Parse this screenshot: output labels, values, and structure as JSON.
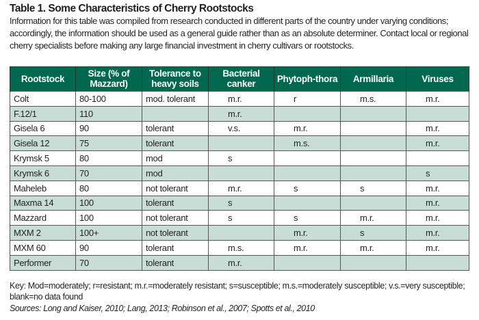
{
  "title": "Table 1. Some Characteristics of Cherry Rootstocks",
  "intro": "Information for this table was compiled from research conducted in different parts of the country under varying conditions; accordingly, the information should be used as a general guide rather than as an absolute determiner. Contact local or regional cherry specialists before making any large financial investment in cherry cultivars or rootstocks.",
  "headers": [
    "Rootstock",
    "Size (% of Mazzard)",
    "Tolerance to heavy soils",
    "Bacterial canker",
    "Phytoph-thora",
    "Armillaria",
    "Viruses"
  ],
  "rows": [
    [
      "Colt",
      "80-100",
      "mod. tolerant",
      "m.r.",
      "r",
      "m.s.",
      "m.r."
    ],
    [
      "F.12/1",
      "110",
      "",
      "m.r.",
      "",
      "",
      ""
    ],
    [
      "Gisela 6",
      "90",
      "tolerant",
      "v.s.",
      "m.r.",
      "",
      "m.r."
    ],
    [
      "Gisela 12",
      "75",
      "tolerant",
      "",
      "m.s.",
      "",
      "m.r."
    ],
    [
      "Krymsk 5",
      "80",
      "mod",
      "s",
      "",
      "",
      ""
    ],
    [
      "Krymsk 6",
      "70",
      "mod",
      "",
      "",
      "",
      "s"
    ],
    [
      "Maheleb",
      "80",
      "not tolerant",
      "m.r.",
      "s",
      "s",
      "m.r."
    ],
    [
      "Maxma 14",
      "100",
      "tolerant",
      "s",
      "",
      "",
      "m.r."
    ],
    [
      "Mazzard",
      "100",
      "not tolerant",
      "s",
      "s",
      "m.r.",
      "m.r."
    ],
    [
      "MXM 2",
      "100+",
      "not tolerant",
      "",
      "m.r.",
      "s",
      "m.r."
    ],
    [
      "MXM 60",
      "90",
      "tolerant",
      "m.s.",
      "m.r.",
      "m.r.",
      "m.r."
    ],
    [
      "Performer",
      "70",
      "tolerant",
      "m.r.",
      "",
      "",
      ""
    ]
  ],
  "key": "Key: Mod=moderately; r=resistant; m.r.=moderately resistant; s=susceptible; m.s.=moderately susceptible; v.s.=very susceptible; blank=no data found",
  "sources": "Sources: Long and Kaiser, 2010; Lang, 2013; Robinson et al., 2007; Spotts et al., 2010",
  "colors": {
    "header_bg": "#00684e",
    "alt_row_bg": "#c9ddd7"
  }
}
